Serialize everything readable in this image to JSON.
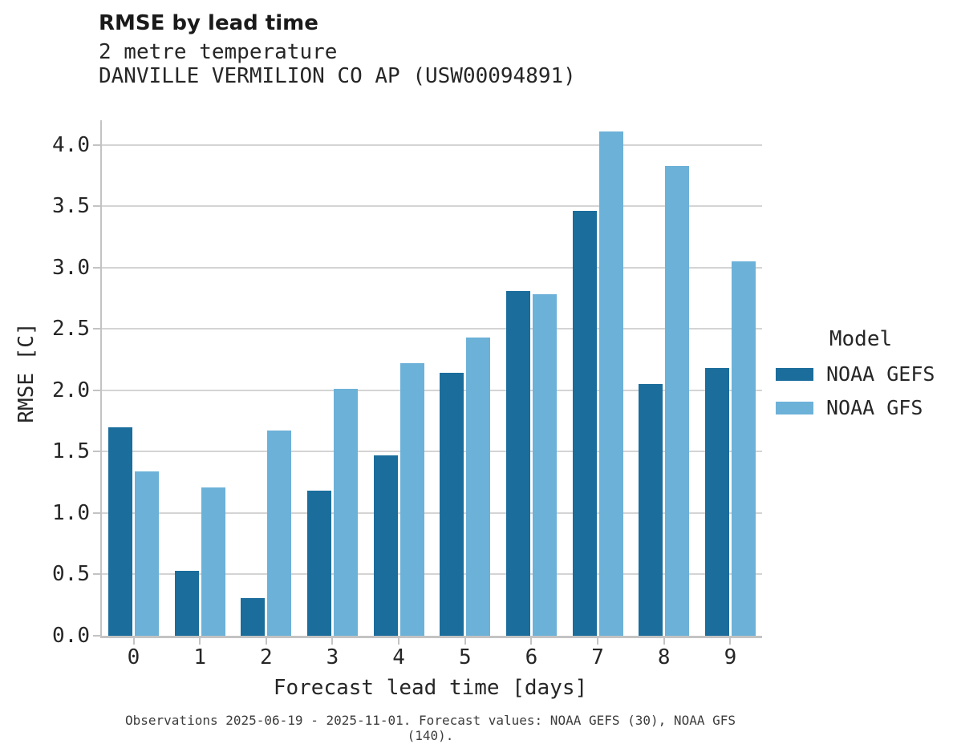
{
  "figure": {
    "title": "RMSE by lead time",
    "subtitle1": "2 metre temperature",
    "subtitle2": "DANVILLE VERMILION CO AP (USW00094891)"
  },
  "chart_data": {
    "type": "bar",
    "title": "RMSE by lead time",
    "subtitle": "2 metre temperature",
    "station": "DANVILLE VERMILION CO AP (USW00094891)",
    "xlabel": "Forecast lead time [days]",
    "ylabel": "RMSE [C]",
    "categories": [
      "0",
      "1",
      "2",
      "3",
      "4",
      "5",
      "6",
      "7",
      "8",
      "9"
    ],
    "series": [
      {
        "name": "NOAA GEFS",
        "color": "#1b6d9c",
        "values": [
          1.7,
          0.53,
          0.31,
          1.18,
          1.47,
          2.14,
          2.81,
          3.46,
          2.05,
          2.18
        ]
      },
      {
        "name": "NOAA GFS",
        "color": "#6cb1d8",
        "values": [
          1.34,
          1.21,
          1.67,
          2.01,
          2.22,
          2.43,
          2.78,
          4.11,
          3.83,
          3.05
        ]
      }
    ],
    "ylim": [
      0,
      4.2
    ],
    "yticks": [
      0.0,
      0.5,
      1.0,
      1.5,
      2.0,
      2.5,
      3.0,
      3.5,
      4.0
    ],
    "grid": "horizontal",
    "legend": {
      "title": "Model",
      "position": "right"
    },
    "caption": "Observations 2025-06-19 - 2025-11-01. Forecast values: NOAA GEFS (30), NOAA GFS (140)."
  }
}
